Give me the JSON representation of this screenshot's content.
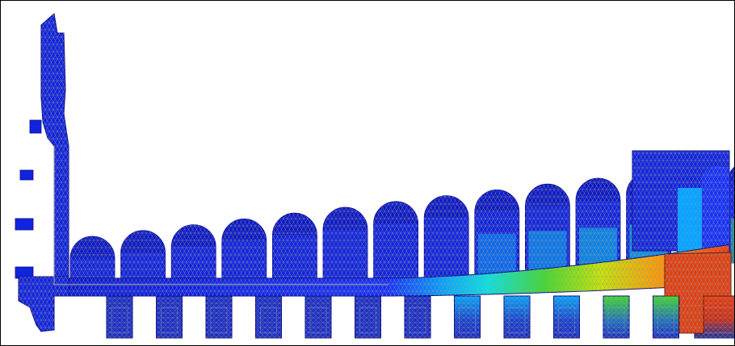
{
  "figure": {
    "kind": "finite-element-contour-plot",
    "cross_section": "ribbed-cylinder-with-end-flange",
    "mesh": "triangular-wireframe",
    "rib_count": 14,
    "lower_tooth_count": 13,
    "colormap": [
      "#0a17d6",
      "#1430ff",
      "#00a6ff",
      "#00e6e6",
      "#3ddc2a",
      "#c8e600",
      "#ff9a00",
      "#e8380c"
    ],
    "mesh_color": "#9a9a9a",
    "outline_color": "#000000",
    "background_color": "#ffffff"
  }
}
